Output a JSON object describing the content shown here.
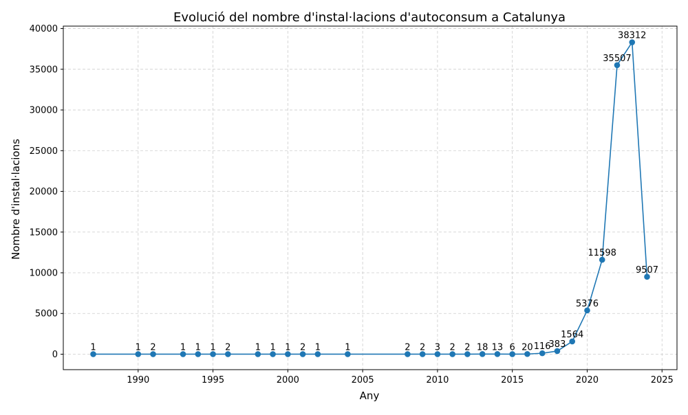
{
  "chart_data": {
    "type": "line",
    "title": "Evolució del nombre d'instal·lacions d'autoconsum a Catalunya",
    "xlabel": "Any",
    "ylabel": "Nombre d'instal·lacions",
    "xlim": [
      1985,
      2026
    ],
    "ylim": [
      -1900,
      40300
    ],
    "x_ticks": [
      1990,
      1995,
      2000,
      2005,
      2010,
      2015,
      2020,
      2025
    ],
    "y_ticks": [
      0,
      5000,
      10000,
      15000,
      20000,
      25000,
      30000,
      35000,
      40000
    ],
    "grid": true,
    "color": "#1f77b4",
    "series": [
      {
        "x": [
          1987,
          1990,
          1991,
          1993,
          1994,
          1995,
          1996,
          1998,
          1999,
          2000,
          2001,
          2002,
          2004,
          2008,
          2009,
          2010,
          2011,
          2012,
          2013,
          2014,
          2015,
          2016,
          2017,
          2018,
          2019,
          2020,
          2021,
          2022,
          2023,
          2024
        ],
        "values": [
          1,
          1,
          2,
          1,
          1,
          1,
          2,
          1,
          1,
          1,
          2,
          1,
          1,
          2,
          2,
          3,
          2,
          2,
          18,
          13,
          6,
          20,
          116,
          383,
          1564,
          5376,
          11598,
          35507,
          38312,
          9507
        ]
      }
    ]
  }
}
